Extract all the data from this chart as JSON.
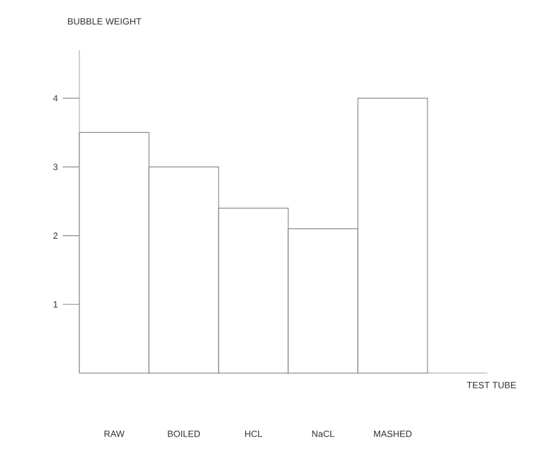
{
  "chart_data": {
    "type": "bar",
    "xlabel": "TEST TUBE",
    "ylabel": "BUBBLE WEIGHT",
    "categories": [
      "RAW",
      "BOILED",
      "HCL",
      "NaCL",
      "MASHED"
    ],
    "values": [
      3.5,
      3,
      2.4,
      2.1,
      4
    ],
    "color": "#ffffff",
    "ylim": [
      0,
      4.7
    ],
    "yticks": [
      1,
      2,
      3,
      4
    ],
    "grid": false
  }
}
